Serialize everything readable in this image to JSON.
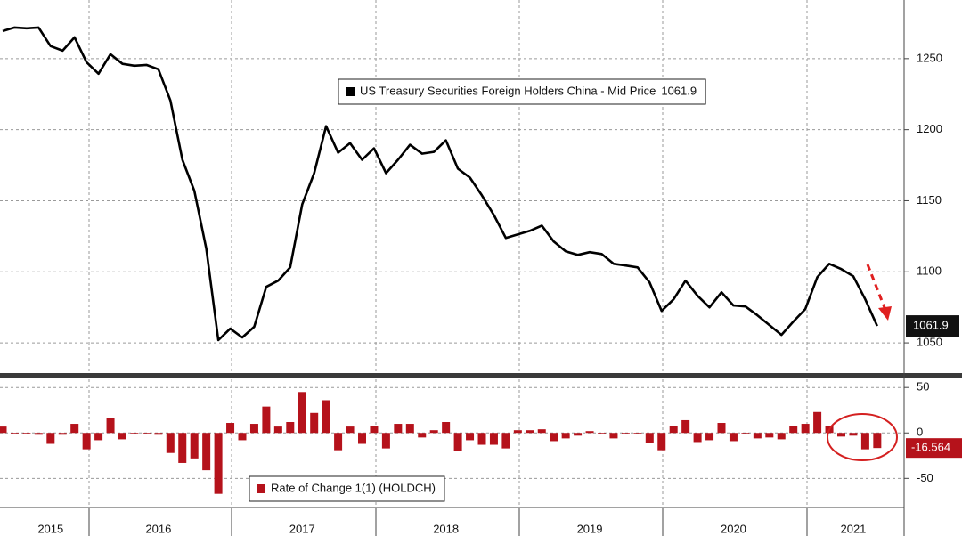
{
  "chart_data": [
    {
      "type": "line",
      "series": [
        {
          "name": "US Treasury Securities Foreign Holders China - Mid Price",
          "color": "#000000",
          "values": [
            1269.4,
            1271.9,
            1271.3,
            1271.9,
            1258.8,
            1255.6,
            1265,
            1247.5,
            1239.4,
            1253.1,
            1246.3,
            1245,
            1245.6,
            1242.5,
            1220.6,
            1178.8,
            1156.9,
            1116.3,
            1051.9,
            1060,
            1053.8,
            1061.3,
            1089.4,
            1093.8,
            1103.1,
            1147.5,
            1169.4,
            1202.5,
            1183.8,
            1190.6,
            1178.8,
            1186.9,
            1169.4,
            1178.8,
            1189.4,
            1183.1,
            1184.4,
            1192.5,
            1172.5,
            1166.3,
            1153.8,
            1140,
            1123.8,
            1126.3,
            1128.8,
            1132.5,
            1121.3,
            1114.4,
            1111.9,
            1113.8,
            1112.5,
            1105.6,
            1104.4,
            1103.1,
            1092.5,
            1072.5,
            1080.6,
            1093.8,
            1083.1,
            1075,
            1085.6,
            1076.3,
            1075.6,
            1069.4,
            1062.5,
            1055.6,
            1065,
            1073.8,
            1096.3,
            1105.6,
            1101.9,
            1096.9,
            1080.6,
            1061.9
          ]
        }
      ],
      "ylim": [
        1028.75,
        1291.25
      ],
      "yticks": [
        1050,
        1100,
        1150,
        1200,
        1250
      ],
      "grid": true
    },
    {
      "type": "bar",
      "categories": [
        null,
        null,
        null,
        null,
        "2015",
        null,
        null,
        null,
        null,
        null,
        null,
        null,
        null,
        "2016",
        null,
        null,
        null,
        null,
        null,
        null,
        null,
        null,
        null,
        null,
        null,
        "2017",
        null,
        null,
        null,
        null,
        null,
        null,
        null,
        null,
        null,
        null,
        null,
        "2018",
        null,
        null,
        null,
        null,
        null,
        null,
        null,
        null,
        null,
        null,
        null,
        "2019",
        null,
        null,
        null,
        null,
        null,
        null,
        null,
        null,
        null,
        null,
        null,
        "2020",
        null,
        null,
        null,
        null,
        null,
        null,
        null,
        null,
        null,
        "2021",
        null,
        null
      ],
      "series": [
        {
          "name": "Rate of Change 1(1) (HOLDCH)",
          "color": "#b5121b",
          "values": [
            7,
            -1,
            -1,
            -2,
            -12,
            -2,
            10,
            -18,
            -8,
            16,
            -7,
            -1,
            -1,
            -2,
            -22,
            -33,
            -28,
            -41,
            -67,
            11,
            -8,
            10,
            29,
            7,
            12,
            45,
            22,
            36,
            -19,
            7,
            -12,
            8,
            -17,
            10,
            10,
            -5,
            3,
            12,
            -20,
            -8,
            -13,
            -13,
            -17,
            3,
            3,
            4,
            -9,
            -6,
            -3,
            2,
            -1,
            -6,
            -1,
            -1,
            -11,
            -19,
            8,
            14,
            -10,
            -8,
            11,
            -9,
            -1,
            -6,
            -5,
            -7,
            8,
            10,
            23,
            8,
            -4,
            -3,
            -18,
            -16.564
          ]
        }
      ],
      "ylim": [
        -82,
        59
      ],
      "yticks": [
        50,
        0,
        -50
      ],
      "grid": true
    }
  ]
}
